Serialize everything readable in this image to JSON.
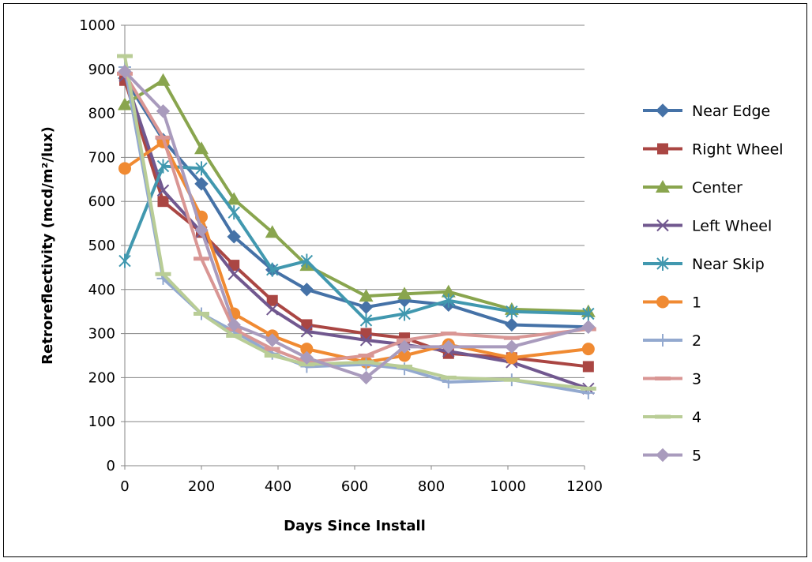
{
  "chart_data": {
    "type": "line",
    "title": "",
    "xlabel": "Days Since Install",
    "ylabel": "Retroreflectivity (mcd/m²/lux)",
    "xlim": [
      0,
      1200
    ],
    "ylim": [
      0,
      1000
    ],
    "xticks": [
      0,
      200,
      400,
      600,
      800,
      1000,
      1200
    ],
    "yticks": [
      0,
      100,
      200,
      300,
      400,
      500,
      600,
      700,
      800,
      900,
      1000
    ],
    "grid": "horizontal",
    "legend_position": "right",
    "series": [
      {
        "name": "Near Edge",
        "color": "#4572A7",
        "marker": "diamond",
        "x": [
          0,
          100,
          200,
          285,
          385,
          475,
          630,
          730,
          845,
          1010,
          1210
        ],
        "y": [
          880,
          740,
          640,
          520,
          445,
          400,
          360,
          375,
          365,
          320,
          315
        ]
      },
      {
        "name": "Right Wheel",
        "color": "#AA4643",
        "marker": "square",
        "x": [
          0,
          100,
          200,
          285,
          385,
          475,
          630,
          730,
          845,
          1010,
          1210
        ],
        "y": [
          875,
          600,
          530,
          455,
          375,
          320,
          300,
          290,
          255,
          245,
          225
        ]
      },
      {
        "name": "Center",
        "color": "#89A54E",
        "marker": "triangle",
        "x": [
          0,
          100,
          200,
          285,
          385,
          475,
          630,
          730,
          845,
          1010,
          1210
        ],
        "y": [
          820,
          875,
          720,
          605,
          530,
          455,
          385,
          390,
          395,
          355,
          350
        ]
      },
      {
        "name": "Left Wheel",
        "color": "#71588F",
        "marker": "x",
        "x": [
          0,
          100,
          200,
          285,
          385,
          475,
          630,
          730,
          845,
          1010,
          1210
        ],
        "y": [
          885,
          625,
          530,
          435,
          355,
          305,
          285,
          275,
          260,
          235,
          175
        ]
      },
      {
        "name": "Near Skip",
        "color": "#4198AF",
        "marker": "star",
        "x": [
          0,
          100,
          200,
          285,
          385,
          475,
          630,
          730,
          845,
          1010,
          1210
        ],
        "y": [
          465,
          680,
          675,
          575,
          445,
          465,
          330,
          345,
          375,
          350,
          345
        ]
      },
      {
        "name": "1",
        "color": "#F08A32",
        "marker": "circle",
        "x": [
          0,
          100,
          200,
          285,
          385,
          475,
          630,
          730,
          845,
          1010,
          1210
        ],
        "y": [
          675,
          735,
          565,
          345,
          295,
          265,
          235,
          250,
          275,
          245,
          265
        ]
      },
      {
        "name": "2",
        "color": "#93A9CF",
        "marker": "plus",
        "x": [
          0,
          100,
          200,
          285,
          385,
          475,
          630,
          730,
          845,
          1010,
          1210
        ],
        "y": [
          905,
          425,
          345,
          305,
          255,
          225,
          230,
          220,
          190,
          195,
          165
        ]
      },
      {
        "name": "3",
        "color": "#D99694",
        "marker": "dash",
        "x": [
          0,
          100,
          200,
          285,
          385,
          475,
          630,
          730,
          845,
          1010,
          1210
        ],
        "y": [
          890,
          745,
          470,
          310,
          265,
          235,
          250,
          285,
          300,
          290,
          310
        ]
      },
      {
        "name": "4",
        "color": "#B9CD96",
        "marker": "dash",
        "x": [
          0,
          100,
          200,
          285,
          385,
          475,
          630,
          730,
          845,
          1010,
          1210
        ],
        "y": [
          930,
          435,
          345,
          295,
          250,
          230,
          235,
          225,
          200,
          195,
          175
        ]
      },
      {
        "name": "5",
        "color": "#A99BBD",
        "marker": "diamond",
        "x": [
          0,
          100,
          200,
          285,
          385,
          475,
          630,
          730,
          845,
          1010,
          1210
        ],
        "y": [
          895,
          805,
          535,
          320,
          285,
          245,
          200,
          270,
          270,
          270,
          315
        ]
      }
    ]
  }
}
